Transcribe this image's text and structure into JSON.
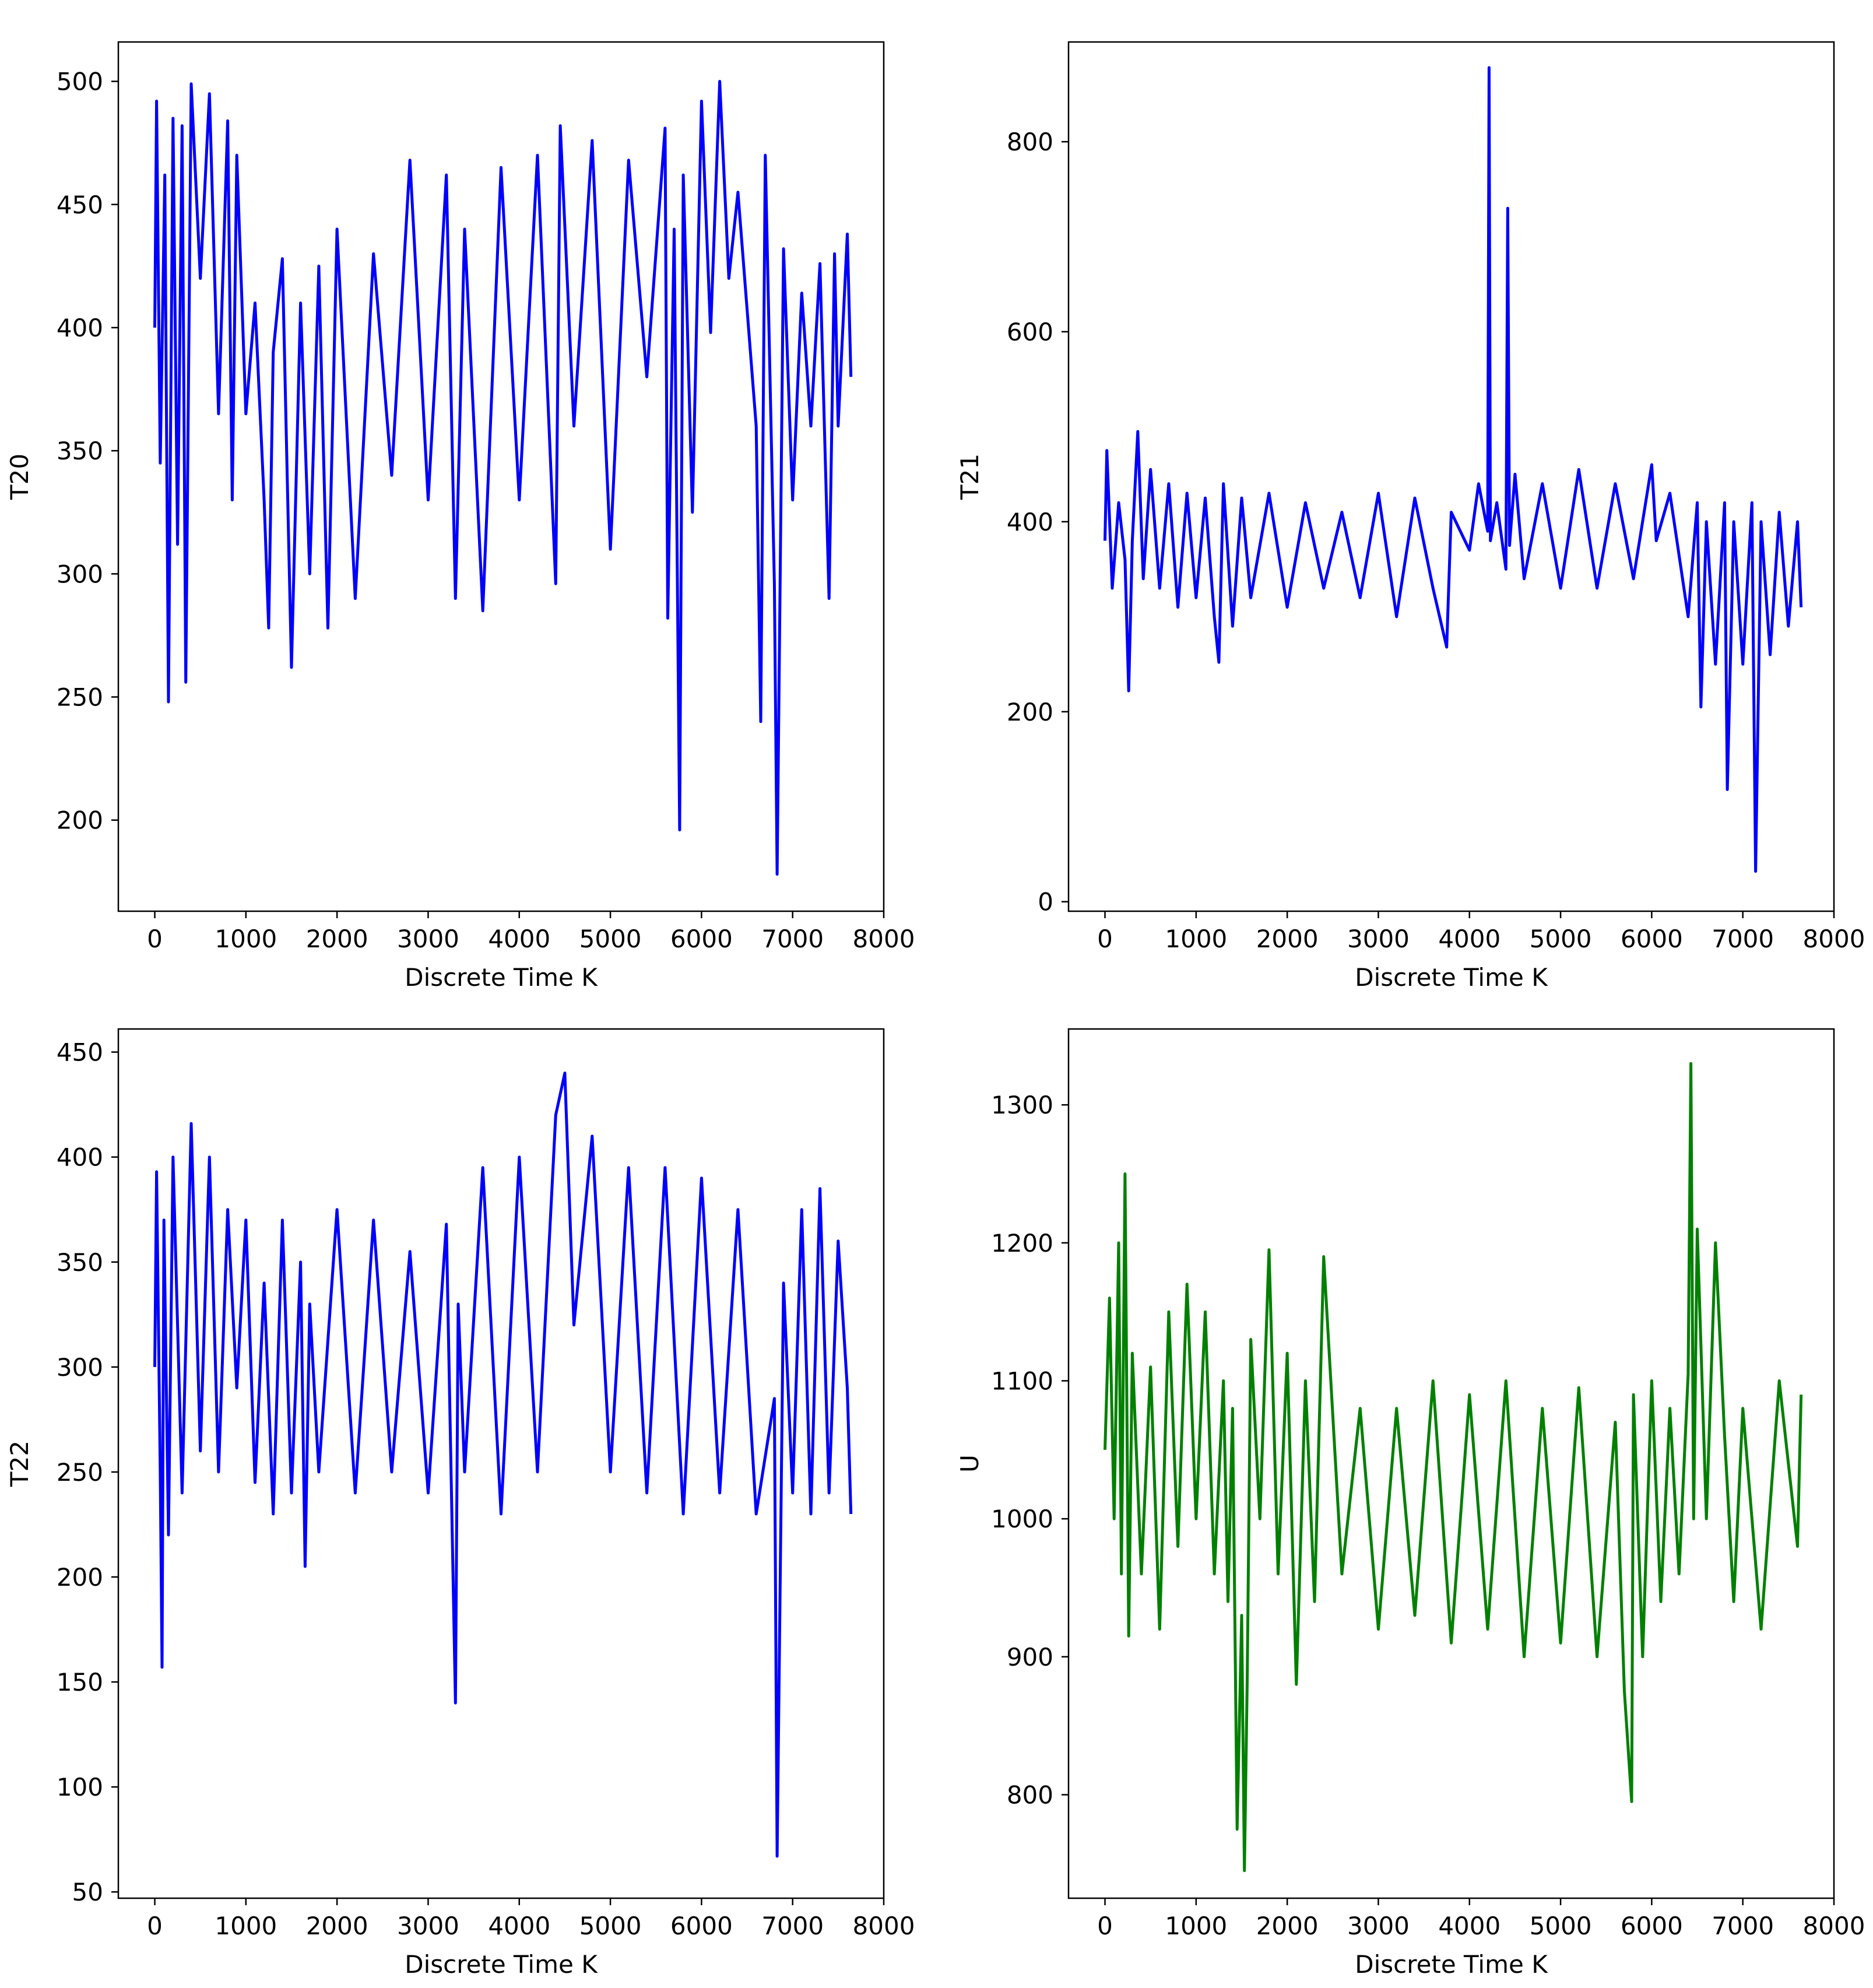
{
  "chart_data": [
    {
      "type": "line",
      "xlabel": "Discrete Time K",
      "ylabel": "T20",
      "xlim": [
        -400,
        8000
      ],
      "ylim": [
        163,
        516
      ],
      "xticks": [
        0,
        1000,
        2000,
        3000,
        4000,
        5000,
        6000,
        7000,
        8000
      ],
      "yticks": [
        200,
        250,
        300,
        350,
        400,
        450,
        500
      ],
      "color": "#0000ff",
      "series": [
        {
          "x": [
            0,
            20,
            60,
            110,
            150,
            200,
            250,
            300,
            340,
            400,
            500,
            600,
            700,
            800,
            850,
            900,
            1000,
            1100,
            1200,
            1250,
            1300,
            1400,
            1500,
            1600,
            1700,
            1800,
            1900,
            2000,
            2200,
            2400,
            2600,
            2800,
            3000,
            3200,
            3300,
            3400,
            3600,
            3800,
            4000,
            4200,
            4400,
            4450,
            4600,
            4800,
            5000,
            5200,
            5400,
            5600,
            5630,
            5700,
            5760,
            5800,
            5900,
            6000,
            6100,
            6200,
            6300,
            6400,
            6600,
            6650,
            6700,
            6800,
            6830,
            6900,
            7000,
            7100,
            7200,
            7300,
            7400,
            7460,
            7500,
            7600,
            7640
          ],
          "values": [
            400,
            492,
            345,
            462,
            248,
            485,
            312,
            482,
            256,
            499,
            420,
            495,
            365,
            484,
            330,
            470,
            365,
            410,
            330,
            278,
            390,
            428,
            262,
            410,
            300,
            425,
            278,
            440,
            290,
            430,
            340,
            468,
            330,
            462,
            290,
            440,
            285,
            465,
            330,
            470,
            296,
            482,
            360,
            476,
            310,
            468,
            380,
            481,
            282,
            440,
            196,
            462,
            325,
            492,
            398,
            500,
            420,
            455,
            360,
            240,
            470,
            296,
            178,
            432,
            330,
            414,
            360,
            426,
            290,
            430,
            360,
            438,
            380
          ]
        }
      ]
    },
    {
      "type": "line",
      "xlabel": "Discrete Time K",
      "ylabel": "T21",
      "xlim": [
        -400,
        8000
      ],
      "ylim": [
        -10,
        905
      ],
      "xticks": [
        0,
        1000,
        2000,
        3000,
        4000,
        5000,
        6000,
        7000,
        8000
      ],
      "yticks": [
        0,
        200,
        400,
        600,
        800
      ],
      "color": "#0000ff",
      "series": [
        {
          "x": [
            0,
            20,
            80,
            150,
            220,
            260,
            300,
            360,
            420,
            500,
            600,
            700,
            800,
            900,
            1000,
            1100,
            1200,
            1250,
            1300,
            1400,
            1500,
            1600,
            1800,
            2000,
            2200,
            2400,
            2600,
            2800,
            3000,
            3200,
            3400,
            3600,
            3750,
            3800,
            4000,
            4100,
            4200,
            4215,
            4230,
            4300,
            4400,
            4420,
            4440,
            4500,
            4600,
            4800,
            5000,
            5200,
            5400,
            5600,
            5800,
            6000,
            6050,
            6200,
            6400,
            6500,
            6540,
            6600,
            6700,
            6800,
            6830,
            6900,
            7000,
            7100,
            7140,
            7200,
            7300,
            7400,
            7500,
            7600,
            7640
          ],
          "values": [
            380,
            475,
            330,
            420,
            360,
            222,
            380,
            495,
            340,
            455,
            330,
            440,
            310,
            430,
            320,
            425,
            300,
            252,
            440,
            290,
            425,
            320,
            430,
            310,
            420,
            330,
            410,
            320,
            430,
            300,
            425,
            330,
            268,
            410,
            370,
            440,
            390,
            878,
            380,
            420,
            350,
            730,
            375,
            450,
            340,
            440,
            330,
            455,
            330,
            440,
            340,
            460,
            380,
            430,
            300,
            420,
            205,
            400,
            250,
            420,
            118,
            400,
            250,
            420,
            32,
            400,
            260,
            410,
            290,
            400,
            310
          ]
        }
      ]
    },
    {
      "type": "line",
      "xlabel": "Discrete Time K",
      "ylabel": "T22",
      "xlim": [
        -400,
        8000
      ],
      "ylim": [
        47,
        461
      ],
      "xticks": [
        0,
        1000,
        2000,
        3000,
        4000,
        5000,
        6000,
        7000,
        8000
      ],
      "yticks": [
        50,
        100,
        150,
        200,
        250,
        300,
        350,
        400,
        450
      ],
      "color": "#0000ff",
      "series": [
        {
          "x": [
            0,
            20,
            60,
            80,
            100,
            150,
            200,
            300,
            400,
            500,
            600,
            700,
            800,
            900,
            1000,
            1100,
            1200,
            1300,
            1400,
            1500,
            1600,
            1650,
            1700,
            1800,
            2000,
            2200,
            2400,
            2600,
            2800,
            3000,
            3200,
            3300,
            3330,
            3400,
            3600,
            3800,
            4000,
            4200,
            4400,
            4500,
            4600,
            4800,
            5000,
            5200,
            5400,
            5600,
            5800,
            6000,
            6200,
            6400,
            6600,
            6800,
            6830,
            6900,
            7000,
            7100,
            7200,
            7300,
            7400,
            7500,
            7600,
            7640
          ],
          "values": [
            300,
            393,
            250,
            157,
            370,
            220,
            400,
            240,
            416,
            260,
            400,
            250,
            375,
            290,
            370,
            245,
            340,
            230,
            370,
            240,
            350,
            205,
            330,
            250,
            375,
            240,
            370,
            250,
            355,
            240,
            368,
            140,
            330,
            250,
            395,
            230,
            400,
            250,
            420,
            440,
            320,
            410,
            250,
            395,
            240,
            395,
            230,
            390,
            240,
            375,
            230,
            285,
            67,
            340,
            240,
            375,
            230,
            385,
            240,
            360,
            290,
            230
          ]
        }
      ]
    },
    {
      "type": "line",
      "xlabel": "Discrete Time K",
      "ylabel": "U",
      "xlim": [
        -400,
        8000
      ],
      "ylim": [
        725,
        1355
      ],
      "xticks": [
        0,
        1000,
        2000,
        3000,
        4000,
        5000,
        6000,
        7000,
        8000
      ],
      "yticks": [
        800,
        900,
        1000,
        1100,
        1200,
        1300
      ],
      "color": "#008000",
      "series": [
        {
          "x": [
            0,
            50,
            100,
            150,
            180,
            220,
            260,
            300,
            400,
            500,
            600,
            700,
            800,
            900,
            1000,
            1100,
            1200,
            1300,
            1350,
            1400,
            1450,
            1500,
            1530,
            1560,
            1600,
            1700,
            1800,
            1900,
            2000,
            2100,
            2200,
            2300,
            2400,
            2600,
            2800,
            3000,
            3200,
            3400,
            3600,
            3800,
            4000,
            4200,
            4400,
            4600,
            4800,
            5000,
            5200,
            5400,
            5600,
            5700,
            5780,
            5800,
            5900,
            6000,
            6100,
            6200,
            6300,
            6400,
            6430,
            6460,
            6500,
            6600,
            6700,
            6800,
            6900,
            7000,
            7200,
            7400,
            7600,
            7640
          ],
          "values": [
            1050,
            1160,
            1000,
            1200,
            960,
            1250,
            915,
            1120,
            960,
            1110,
            920,
            1150,
            980,
            1170,
            1000,
            1150,
            960,
            1100,
            940,
            1080,
            775,
            930,
            745,
            880,
            1130,
            1000,
            1195,
            960,
            1120,
            880,
            1100,
            940,
            1190,
            960,
            1080,
            920,
            1080,
            930,
            1100,
            910,
            1090,
            920,
            1100,
            900,
            1080,
            910,
            1095,
            900,
            1070,
            875,
            795,
            1090,
            900,
            1100,
            940,
            1080,
            960,
            1105,
            1330,
            1000,
            1210,
            1000,
            1200,
            1060,
            940,
            1080,
            920,
            1100,
            980,
            1090
          ]
        }
      ]
    }
  ]
}
